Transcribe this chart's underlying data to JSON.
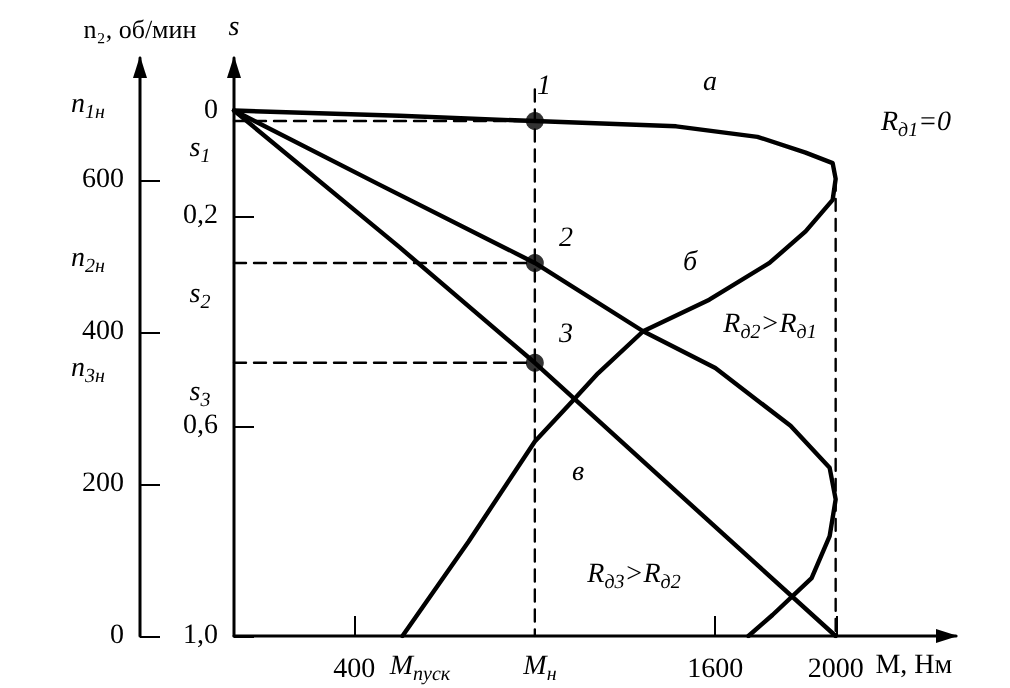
{
  "chart_data": {
    "type": "line",
    "xlabel": "M, Нм",
    "ylabel": "s",
    "y2label": "n₂, об/мин",
    "xlim": [
      0,
      2400
    ],
    "xticks": [
      400,
      1600,
      2000
    ],
    "ylim": [
      1,
      -0.1
    ],
    "yticks": [
      0,
      {
        "value": 0.2,
        "label": "0,2"
      },
      {
        "value": 0.6,
        "label": "0,6"
      },
      {
        "value": 1,
        "label": "1,0"
      }
    ],
    "y2lim": [
      0,
      760
    ],
    "y2ticks": [
      0,
      200,
      400,
      600
    ],
    "marker": "none",
    "line_style": "solid",
    "grid": false,
    "series": [
      {
        "color": "#000000",
        "x": [
          0,
          550,
          1000,
          1470,
          1740,
          1900,
          1990,
          2000,
          1990,
          1900,
          1780,
          1580,
          1360,
          1210,
          1130,
          1000,
          780,
          560
        ],
        "values": [
          0,
          0.01,
          0.02,
          0.03,
          0.05,
          0.08,
          0.1,
          0.13,
          0.17,
          0.23,
          0.29,
          0.36,
          0.42,
          0.5,
          0.55,
          0.63,
          0.82,
          1
        ]
      },
      {
        "color": "#000000",
        "x": [
          0,
          480,
          1000,
          1360,
          1600,
          1850,
          1980,
          2000,
          1980,
          1920,
          1790,
          1710
        ],
        "values": [
          0,
          0.14,
          0.29,
          0.42,
          0.49,
          0.6,
          0.68,
          0.74,
          0.81,
          0.89,
          0.96,
          1
        ]
      },
      {
        "color": "#000000",
        "x": [
          0,
          550,
          1000,
          1480,
          2000
        ],
        "values": [
          0,
          0.26,
          0.48,
          0.73,
          1
        ]
      },
      {
        "color": "#000000",
        "line_style": "dashed",
        "x": [
          0,
          1000
        ],
        "values": [
          0.02,
          0.02
        ]
      },
      {
        "color": "#000000",
        "line_style": "dashed",
        "x": [
          0,
          1000
        ],
        "values": [
          0.29,
          0.29
        ]
      },
      {
        "color": "#000000",
        "line_style": "dashed",
        "x": [
          0,
          1000
        ],
        "values": [
          0.48,
          0.48
        ]
      },
      {
        "color": "#000000",
        "line_style": "dashed",
        "x": [
          1000,
          1000
        ],
        "values": [
          -0.04,
          1
        ]
      },
      {
        "color": "#000000",
        "line_style": "dashed",
        "x": [
          2000,
          2000
        ],
        "values": [
          0.13,
          1
        ]
      },
      {
        "type": "scatter",
        "marker": "circle",
        "color": "#000000",
        "x": [
          1000,
          1000,
          1000
        ],
        "values": [
          0.02,
          0.29,
          0.48
        ]
      }
    ],
    "annotations": [
      "1",
      "2",
      "3",
      "а",
      "б",
      "в",
      "R$_{д1}$=0",
      "R$_{д2}$>R$_{д1}$",
      "R$_{д3}$>R$_{д2}$",
      "s$_{1}$",
      "s$_{2}$",
      "s$_{3}$",
      "n$_{1н}$",
      "n$_{2н}$",
      "n$_{3н}$",
      "M$_{пуск}$",
      "M$_{н}$"
    ]
  }
}
